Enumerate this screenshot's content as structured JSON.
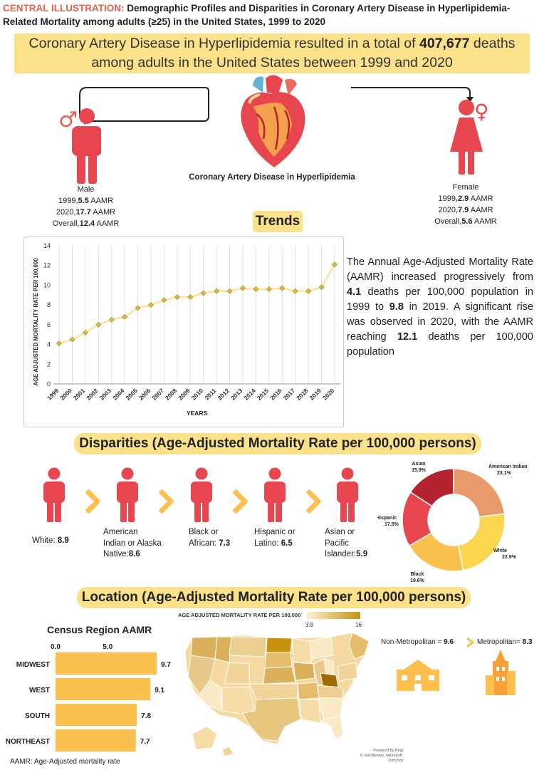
{
  "header": {
    "label": "CENTRAL ILLUSTRATION:",
    "title": "Demographic Profiles and Disparities in Coronary Artery Disease in Hyperlipidemia-Related Mortality among adults (≥25) in the United States, 1999 to 2020"
  },
  "banner": {
    "line1_pre": "Coronary Artery Disease in Hyperlipidemia resulted in a total of ",
    "line1_num": "407,677",
    "line1_post": " deaths",
    "line2": "among adults in the United States between 1999 and 2020"
  },
  "heart_caption": "Coronary Artery Disease in Hyperlipidemia",
  "male": {
    "label": "Male",
    "y1999_pre": "1999,",
    "y1999": "5.5",
    "y2020_pre": "2020,",
    "y2020": "17.7",
    "overall_pre": "Overall,",
    "overall": "12.4",
    "unit": " AAMR"
  },
  "female": {
    "label": "Female",
    "y1999_pre": "1999,",
    "y1999": "2.9",
    "y2020_pre": "2020,",
    "y2020": "7.9",
    "overall_pre": "Overall,",
    "overall": "5.6",
    "unit": " AAMR"
  },
  "trends_title": "Trends",
  "trends_text": {
    "p1": "The Annual Age-Adjusted Mortality Rate (AAMR) increased progressively from ",
    "v1": "4.1",
    "p2": " deaths per 100,000 population in 1999 to ",
    "v2": "9.8",
    "p3": " in 2019. A significant rise was observed in 2020, with the AAMR reaching ",
    "v3": "12.1",
    "p4": " deaths per 100,000 population"
  },
  "disparities_title": "Disparities (Age-Adjusted Mortality Rate per 100,000 persons)",
  "race": [
    {
      "l1": "White: ",
      "l2": "",
      "l3": "",
      "val": "8.9"
    },
    {
      "l1": "American",
      "l2": "Indian or Alaska",
      "l3": "Native:",
      "val": "8.6"
    },
    {
      "l1": "Black or",
      "l2": "African: ",
      "l3": "",
      "val": "7.3"
    },
    {
      "l1": "Hispanic or",
      "l2": "Latino: ",
      "l3": "",
      "val": "6.5"
    },
    {
      "l1": "Asian or",
      "l2": "Pacific",
      "l3": "Islander:",
      "val": "5.9"
    }
  ],
  "location_title": "Location (Age-Adjusted Mortality Rate per 100,000 persons)",
  "census_title": "Census Region AAMR",
  "map": {
    "legend_title": "AGE ADJUSTED MORTALITY RATE PER 100,000",
    "min": "3.8",
    "max": "16",
    "credit1": "Powered by Bing",
    "credit2": "© GeoNames, Microsoft, TomTom"
  },
  "urban": {
    "nonmetro_label": "Non-Metropolitan = ",
    "nonmetro_val": "9.6",
    "metro_label": "Metropolitan= ",
    "metro_val": "8.3"
  },
  "footnote": "AAMR: Age-Adjusted mortality rate",
  "colors": {
    "accent": "#fbe18a",
    "red": "#e8464e",
    "orange": "#fbc04d",
    "line": "#fde29a"
  },
  "chart_data": [
    {
      "type": "line",
      "title": "Trends",
      "xlabel": "YEARS",
      "ylabel": "AGE ADJUSTED MORTALITY RATE PER 100,000",
      "ylim": [
        0,
        14
      ],
      "yticks": [
        0,
        2,
        4,
        6,
        8,
        10,
        12,
        14
      ],
      "x": [
        "1999",
        "2000",
        "2001",
        "2002",
        "2003",
        "2004",
        "2005",
        "2006",
        "2007",
        "2008",
        "2009",
        "2010",
        "2011",
        "2012",
        "2013",
        "2014",
        "2015",
        "2016",
        "2017",
        "2018",
        "2019",
        "2020"
      ],
      "values": [
        4.1,
        4.5,
        5.2,
        6.0,
        6.5,
        6.8,
        7.7,
        8.0,
        8.5,
        8.8,
        8.8,
        9.2,
        9.4,
        9.4,
        9.7,
        9.6,
        9.6,
        9.7,
        9.4,
        9.4,
        9.8,
        12.1
      ]
    },
    {
      "type": "pie",
      "title": "",
      "labels": [
        "American Indian",
        "White",
        "Black",
        "Hispanic",
        "Asian"
      ],
      "values": [
        23.1,
        23.9,
        19.6,
        17.5,
        15.9
      ],
      "percent_labels": [
        "23.1%",
        "23.9%",
        "19.6%",
        "17.5%",
        "15.9%"
      ],
      "colors": [
        "#e89a6a",
        "#fcd64f",
        "#fbc04d",
        "#e8464e",
        "#b5232f"
      ]
    },
    {
      "type": "bar",
      "title": "Census Region AAMR",
      "categories": [
        "MIDWEST",
        "WEST",
        "SOUTH",
        "NORTHEAST"
      ],
      "values": [
        9.7,
        9.1,
        7.8,
        7.7
      ],
      "value_labels": [
        "9.7",
        "9.1",
        "7.8",
        "7.7"
      ],
      "xticks": [
        "0.0",
        "5.0"
      ],
      "xlim": [
        0,
        10.8
      ]
    }
  ]
}
